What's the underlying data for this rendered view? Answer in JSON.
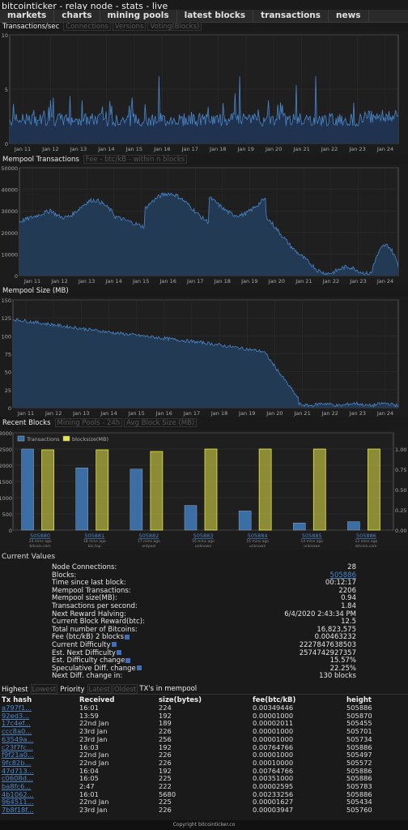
{
  "app_title": "bitcointicker - relay node - stats - live",
  "nav": [
    "markets",
    "charts",
    "mining pools",
    "latest blocks",
    "transactions",
    "news"
  ],
  "chart1": {
    "tabs": [
      {
        "label": "Transactions/sec",
        "active": true
      },
      {
        "label": "Connections",
        "active": false
      },
      {
        "label": "Versions",
        "active": false
      },
      {
        "label": "Voting(Blocks)",
        "active": false
      }
    ],
    "y_ticks": [
      "10",
      "5",
      "0"
    ],
    "x_ticks": [
      "Jan 11",
      "Jan 12",
      "Jan 13",
      "Jan 14",
      "Jan 15",
      "Jan 16",
      "Jan 17",
      "Jan 18",
      "Jan 19",
      "Jan 20",
      "Jan 21",
      "Jan 22",
      "Jan 23",
      "Jan 24"
    ]
  },
  "chart2": {
    "tabs": [
      {
        "label": "Mempool Transactions",
        "active": true
      },
      {
        "label": "Fee - btc/kB - within n blocks",
        "active": false
      }
    ],
    "y_ticks": [
      "50000",
      "40000",
      "30000",
      "20000",
      "10000",
      "0"
    ],
    "x_ticks": [
      "Jan 11",
      "Jan 12",
      "Jan 13",
      "Jan 14",
      "Jan 15",
      "Jan 16",
      "Jan 17",
      "Jan 18",
      "Jan 19",
      "Jan 20",
      "Jan 21",
      "Jan 22",
      "Jan 23",
      "Jan 24"
    ]
  },
  "chart3": {
    "tabs": [
      {
        "label": "Mempool Size (MB)",
        "active": true
      }
    ],
    "y_ticks": [
      "150",
      "125",
      "100",
      "75",
      "50",
      "25",
      "0"
    ],
    "x_ticks": [
      "Jan 11",
      "Jan 12",
      "Jan 13",
      "Jan 14",
      "Jan 15",
      "Jan 16",
      "Jan 17",
      "Jan 18",
      "Jan 19",
      "Jan 20",
      "Jan 21",
      "Jan 22",
      "Jan 23",
      "Jan 24"
    ]
  },
  "chart4": {
    "tabs": [
      {
        "label": "Recent Blocks",
        "active": true
      },
      {
        "label": "Mining Pools - 24h",
        "active": false
      },
      {
        "label": "Avg Block Size (MB)",
        "active": false
      }
    ],
    "legend": [
      "Transactions",
      "blocksize(MB)"
    ],
    "y_left_ticks": [
      "3000",
      "2500",
      "2000",
      "1500",
      "1000",
      "500",
      "0"
    ],
    "y_right_ticks": [
      "1.00",
      "0.75",
      "0.50",
      "0.25",
      "0.00"
    ],
    "colors": {
      "tx": "#3a6ea5",
      "size": "#e6e64a"
    },
    "blocks": [
      {
        "height": "505880",
        "age": "24 mins ago",
        "pool": "bitcoin.com",
        "tx": 2500,
        "size": 0.99
      },
      {
        "height": "505881",
        "age": "18 mins ago",
        "pool": "btc.top",
        "tx": 1920,
        "size": 0.99
      },
      {
        "height": "505882",
        "age": "17 mins ago",
        "pool": "antpool",
        "tx": 1880,
        "size": 0.97
      },
      {
        "height": "505883",
        "age": "16 mins ago",
        "pool": "unknown",
        "tx": 760,
        "size": 1.0
      },
      {
        "height": "505884",
        "age": "16 mins ago",
        "pool": "unknown",
        "tx": 590,
        "size": 1.0
      },
      {
        "height": "505885",
        "age": "14 mins ago",
        "pool": "unknown",
        "tx": 220,
        "size": 1.0
      },
      {
        "height": "505886",
        "age": "12 mins ago",
        "pool": "bitcoin.com",
        "tx": 260,
        "size": 1.0
      }
    ]
  },
  "current_values": {
    "title": "Current Values",
    "rows": [
      {
        "label": "Node Connections:",
        "value": "28"
      },
      {
        "label": "Blocks:",
        "value": "505886",
        "link": true
      },
      {
        "label": "Time since last block:",
        "value": "00:12:17"
      },
      {
        "label": "Mempool Transactions:",
        "value": "2206"
      },
      {
        "label": "Mempool size(MB):",
        "value": "0.94"
      },
      {
        "label": "Transactions per second:",
        "value": "1.84"
      },
      {
        "label": "Next Reward Halving:",
        "value": "6/4/2020 2:43:34 PM"
      },
      {
        "label": "Current Block Reward(btc):",
        "value": "12.5"
      },
      {
        "label": "Total number of Bitcoins:",
        "value": "16,823,575"
      },
      {
        "label": "Fee (btc/kB) 2 blocks",
        "value": "0.00463232",
        "info": true
      },
      {
        "label": "Current Difficulty",
        "value": "2227847638503",
        "info": true
      },
      {
        "label": "Est. Next Difficulty",
        "value": "2574742927357",
        "info": true
      },
      {
        "label": "Est. Difficulty change",
        "value": "15.57%",
        "info": true
      },
      {
        "label": "Speculative Diff. change",
        "value": "22.25%",
        "info": true
      },
      {
        "label": "Next Diff. change in:",
        "value": "130 blocks"
      }
    ]
  },
  "tx_section": {
    "tabs": [
      {
        "label": "Highest",
        "active": true
      },
      {
        "label": "Lowest",
        "active": false
      },
      {
        "label": "Priority",
        "active": true
      },
      {
        "label": "Latest",
        "active": false
      },
      {
        "label": "Oldest",
        "active": false
      }
    ],
    "suffix": "TX's in mempool",
    "headers": [
      "Tx hash",
      "Received",
      "size(bytes)",
      "fee(btc/kB)",
      "height"
    ],
    "rows": [
      [
        "a797f1...",
        "16:01",
        "224",
        "0.00349446",
        "505886"
      ],
      [
        "92ed3...",
        "13:59",
        "192",
        "0.00001000",
        "505870"
      ],
      [
        "17c4ef...",
        "22nd Jan",
        "189",
        "0.00002011",
        "505455"
      ],
      [
        "ccc8a0...",
        "23rd Jan",
        "226",
        "0.00001000",
        "505701"
      ],
      [
        "63549a...",
        "23rd Jan",
        "256",
        "0.00001000",
        "505734"
      ],
      [
        "c23f7fc...",
        "16:03",
        "192",
        "0.00764766",
        "505886"
      ],
      [
        "f9f21a0...",
        "22nd Jan",
        "226",
        "0.00001000",
        "505497"
      ],
      [
        "9fc82b...",
        "22nd Jan",
        "226",
        "0.00010000",
        "505572"
      ],
      [
        "47d713...",
        "16:04",
        "192",
        "0.00764766",
        "505886"
      ],
      [
        "c0608d...",
        "16:05",
        "225",
        "0.00351000",
        "505886"
      ],
      [
        "ba8fc6...",
        "2:47",
        "222",
        "0.00002595",
        "505783"
      ],
      [
        "4b1062...",
        "16:01",
        "5680",
        "0.00233256",
        "505886"
      ],
      [
        "964511...",
        "22nd Jan",
        "225",
        "0.00001627",
        "505434"
      ],
      [
        "7b8f18f...",
        "23rd Jan",
        "226",
        "0.00003947",
        "505760"
      ]
    ]
  },
  "footer": "Copyright bitcointicker.co"
}
